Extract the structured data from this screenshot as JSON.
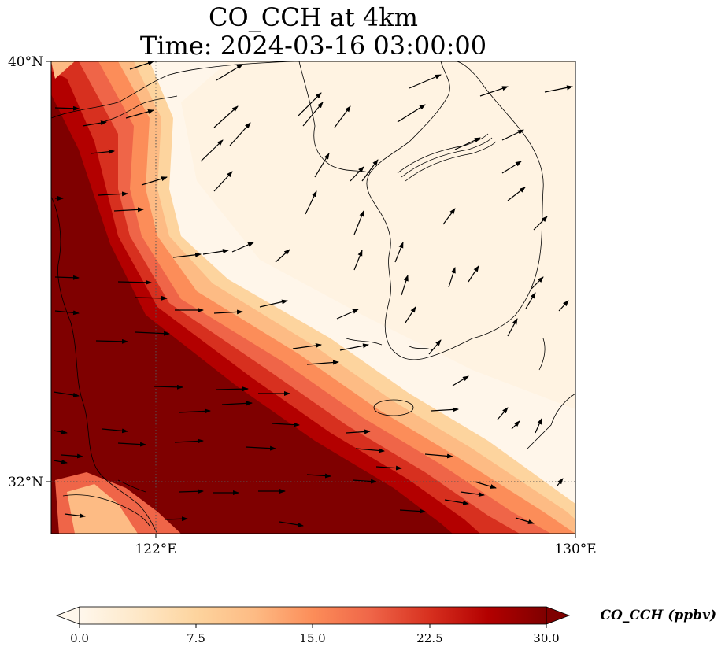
{
  "figure": {
    "title_line1": "CO_CCH at 4km",
    "title_line2": "Time: 2024-03-16 03:00:00"
  },
  "map": {
    "lon_range": [
      120,
      130
    ],
    "lat_range": [
      31,
      40
    ],
    "x_ticks": [
      "122°E",
      "130°E"
    ],
    "y_ticks": [
      "40°N",
      "32°N"
    ],
    "gridlines": "dotted at 122°E and 32°N",
    "field": "CO_CCH mixing ratio, high (>30 ppbv) over western and southern sea, low over Korea and northeast",
    "vectors": "wind arrows, mostly westerly in south, southwesterly in north"
  },
  "colorbar": {
    "label": "CO_CCH (ppbv)",
    "ticks": [
      "0.0",
      "7.5",
      "15.0",
      "22.5",
      "30.0"
    ],
    "range": [
      0,
      30
    ],
    "extend": "both",
    "colormap": "OrRd",
    "colors": [
      "#fff7ec",
      "#fee8c8",
      "#fdd49e",
      "#fdbb84",
      "#fc8d59",
      "#ef6548",
      "#d7301f",
      "#b30000",
      "#7f0000"
    ]
  }
}
